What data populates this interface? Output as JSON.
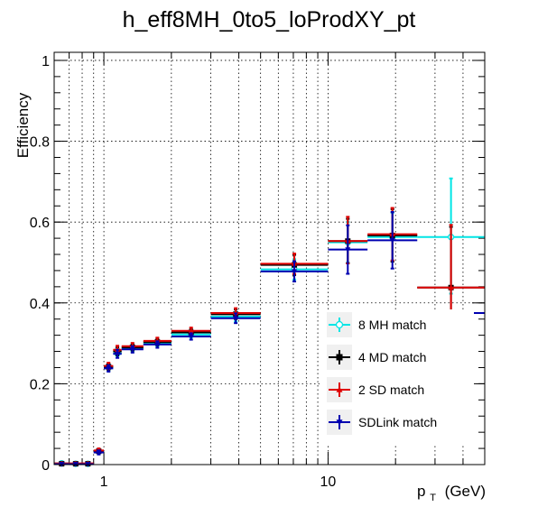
{
  "chart_data": {
    "type": "scatter",
    "title": "h_eff8MH_0to5_loProdXY_pt",
    "ylabel": "Efficiency",
    "xlabel_main": "p",
    "xlabel_sub": "T",
    "xlabel_unit": "(GeV)",
    "x_scale": "log",
    "xlim": [
      0.6,
      50
    ],
    "ylim": [
      0,
      1.02
    ],
    "grid": true,
    "legend_position": "bottom-right",
    "x_ticks": [
      {
        "value": 1,
        "label": "1"
      },
      {
        "value": 10,
        "label": "10"
      }
    ],
    "y_ticks": [
      {
        "value": 0,
        "label": "0"
      },
      {
        "value": 0.2,
        "label": "0.2"
      },
      {
        "value": 0.4,
        "label": "0.4"
      },
      {
        "value": 0.6,
        "label": "0.6"
      },
      {
        "value": 0.8,
        "label": "0.8"
      },
      {
        "value": 1,
        "label": "1"
      }
    ],
    "series": [
      {
        "name": "8 MH match",
        "color": "#00e5e5",
        "marker": "open-circle",
        "points": [
          {
            "xlo": 0.6,
            "xhi": 0.7,
            "y": 0.003,
            "elo": 0.002,
            "ehi": 0.002
          },
          {
            "xlo": 0.7,
            "xhi": 0.8,
            "y": 0.002,
            "elo": 0.002,
            "ehi": 0.002
          },
          {
            "xlo": 0.8,
            "xhi": 0.9,
            "y": 0.002,
            "elo": 0.002,
            "ehi": 0.002
          },
          {
            "xlo": 0.9,
            "xhi": 1.0,
            "y": 0.033,
            "elo": 0.005,
            "ehi": 0.005
          },
          {
            "xlo": 1.0,
            "xhi": 1.1,
            "y": 0.24,
            "elo": 0.008,
            "ehi": 0.008
          },
          {
            "xlo": 1.1,
            "xhi": 1.2,
            "y": 0.275,
            "elo": 0.01,
            "ehi": 0.01
          },
          {
            "xlo": 1.2,
            "xhi": 1.5,
            "y": 0.288,
            "elo": 0.008,
            "ehi": 0.008
          },
          {
            "xlo": 1.5,
            "xhi": 2.0,
            "y": 0.3,
            "elo": 0.008,
            "ehi": 0.008
          },
          {
            "xlo": 2.0,
            "xhi": 3.0,
            "y": 0.322,
            "elo": 0.008,
            "ehi": 0.008
          },
          {
            "xlo": 3.0,
            "xhi": 5.0,
            "y": 0.366,
            "elo": 0.012,
            "ehi": 0.012
          },
          {
            "xlo": 5.0,
            "xhi": 10.0,
            "y": 0.483,
            "elo": 0.025,
            "ehi": 0.025
          },
          {
            "xlo": 10.0,
            "xhi": 15.0,
            "y": 0.55,
            "elo": 0.05,
            "ehi": 0.05
          },
          {
            "xlo": 15.0,
            "xhi": 25.0,
            "y": 0.563,
            "elo": 0.06,
            "ehi": 0.06
          },
          {
            "xlo": 25.0,
            "xhi": 50.0,
            "y": 0.563,
            "elo": 0.14,
            "ehi": 0.145
          }
        ]
      },
      {
        "name": "4 MD match",
        "color": "#000000",
        "marker": "filled-square",
        "points": [
          {
            "xlo": 0.6,
            "xhi": 0.7,
            "y": 0.002,
            "elo": 0.002,
            "ehi": 0.002
          },
          {
            "xlo": 0.7,
            "xhi": 0.8,
            "y": 0.002,
            "elo": 0.002,
            "ehi": 0.002
          },
          {
            "xlo": 0.8,
            "xhi": 0.9,
            "y": 0.002,
            "elo": 0.002,
            "ehi": 0.002
          },
          {
            "xlo": 0.9,
            "xhi": 1.0,
            "y": 0.033,
            "elo": 0.005,
            "ehi": 0.005
          },
          {
            "xlo": 1.0,
            "xhi": 1.1,
            "y": 0.242,
            "elo": 0.008,
            "ehi": 0.008
          },
          {
            "xlo": 1.1,
            "xhi": 1.2,
            "y": 0.28,
            "elo": 0.01,
            "ehi": 0.01
          },
          {
            "xlo": 1.2,
            "xhi": 1.5,
            "y": 0.29,
            "elo": 0.008,
            "ehi": 0.008
          },
          {
            "xlo": 1.5,
            "xhi": 2.0,
            "y": 0.303,
            "elo": 0.008,
            "ehi": 0.008
          },
          {
            "xlo": 2.0,
            "xhi": 3.0,
            "y": 0.327,
            "elo": 0.008,
            "ehi": 0.008
          },
          {
            "xlo": 3.0,
            "xhi": 5.0,
            "y": 0.372,
            "elo": 0.012,
            "ehi": 0.012
          },
          {
            "xlo": 5.0,
            "xhi": 10.0,
            "y": 0.494,
            "elo": 0.025,
            "ehi": 0.025
          },
          {
            "xlo": 10.0,
            "xhi": 15.0,
            "y": 0.553,
            "elo": 0.055,
            "ehi": 0.055
          },
          {
            "xlo": 15.0,
            "xhi": 25.0,
            "y": 0.567,
            "elo": 0.065,
            "ehi": 0.065
          },
          {
            "xlo": 25.0,
            "xhi": 50.0,
            "y": 0.438,
            "elo": 0.15,
            "ehi": 0.15
          }
        ]
      },
      {
        "name": "2 SD match",
        "color": "#e00000",
        "marker": "filled-triangle",
        "points": [
          {
            "xlo": 0.6,
            "xhi": 0.7,
            "y": 0.003,
            "elo": 0.002,
            "ehi": 0.002
          },
          {
            "xlo": 0.7,
            "xhi": 0.8,
            "y": 0.003,
            "elo": 0.002,
            "ehi": 0.002
          },
          {
            "xlo": 0.8,
            "xhi": 0.9,
            "y": 0.003,
            "elo": 0.002,
            "ehi": 0.002
          },
          {
            "xlo": 0.9,
            "xhi": 1.0,
            "y": 0.035,
            "elo": 0.005,
            "ehi": 0.005
          },
          {
            "xlo": 1.0,
            "xhi": 1.1,
            "y": 0.244,
            "elo": 0.008,
            "ehi": 0.008
          },
          {
            "xlo": 1.1,
            "xhi": 1.2,
            "y": 0.284,
            "elo": 0.01,
            "ehi": 0.01
          },
          {
            "xlo": 1.2,
            "xhi": 1.5,
            "y": 0.293,
            "elo": 0.008,
            "ehi": 0.008
          },
          {
            "xlo": 1.5,
            "xhi": 2.0,
            "y": 0.306,
            "elo": 0.008,
            "ehi": 0.008
          },
          {
            "xlo": 2.0,
            "xhi": 3.0,
            "y": 0.331,
            "elo": 0.008,
            "ehi": 0.008
          },
          {
            "xlo": 3.0,
            "xhi": 5.0,
            "y": 0.375,
            "elo": 0.012,
            "ehi": 0.012
          },
          {
            "xlo": 5.0,
            "xhi": 10.0,
            "y": 0.497,
            "elo": 0.025,
            "ehi": 0.025
          },
          {
            "xlo": 10.0,
            "xhi": 15.0,
            "y": 0.553,
            "elo": 0.055,
            "ehi": 0.06
          },
          {
            "xlo": 15.0,
            "xhi": 25.0,
            "y": 0.57,
            "elo": 0.065,
            "ehi": 0.065
          },
          {
            "xlo": 25.0,
            "xhi": 50.0,
            "y": 0.438,
            "elo": 0.15,
            "ehi": 0.155
          }
        ]
      },
      {
        "name": "SDLink match",
        "color": "#0000b0",
        "marker": "filled-inverted-triangle",
        "points": [
          {
            "xlo": 0.6,
            "xhi": 0.7,
            "y": 0.001,
            "elo": 0.001,
            "ehi": 0.001
          },
          {
            "xlo": 0.7,
            "xhi": 0.8,
            "y": 0.001,
            "elo": 0.001,
            "ehi": 0.001
          },
          {
            "xlo": 0.8,
            "xhi": 0.9,
            "y": 0.001,
            "elo": 0.001,
            "ehi": 0.001
          },
          {
            "xlo": 0.9,
            "xhi": 1.0,
            "y": 0.03,
            "elo": 0.005,
            "ehi": 0.005
          },
          {
            "xlo": 1.0,
            "xhi": 1.1,
            "y": 0.238,
            "elo": 0.008,
            "ehi": 0.008
          },
          {
            "xlo": 1.1,
            "xhi": 1.2,
            "y": 0.274,
            "elo": 0.01,
            "ehi": 0.01
          },
          {
            "xlo": 1.2,
            "xhi": 1.5,
            "y": 0.285,
            "elo": 0.008,
            "ehi": 0.008
          },
          {
            "xlo": 1.5,
            "xhi": 2.0,
            "y": 0.297,
            "elo": 0.008,
            "ehi": 0.008
          },
          {
            "xlo": 2.0,
            "xhi": 3.0,
            "y": 0.317,
            "elo": 0.008,
            "ehi": 0.008
          },
          {
            "xlo": 3.0,
            "xhi": 5.0,
            "y": 0.362,
            "elo": 0.012,
            "ehi": 0.012
          },
          {
            "xlo": 5.0,
            "xhi": 10.0,
            "y": 0.478,
            "elo": 0.025,
            "ehi": 0.025
          },
          {
            "xlo": 10.0,
            "xhi": 15.0,
            "y": 0.532,
            "elo": 0.06,
            "ehi": 0.06
          },
          {
            "xlo": 15.0,
            "xhi": 25.0,
            "y": 0.555,
            "elo": 0.07,
            "ehi": 0.07
          },
          {
            "xlo": 25.0,
            "xhi": 50.0,
            "y": 0.375,
            "elo": 0.0,
            "ehi": 0.0
          }
        ]
      }
    ]
  }
}
